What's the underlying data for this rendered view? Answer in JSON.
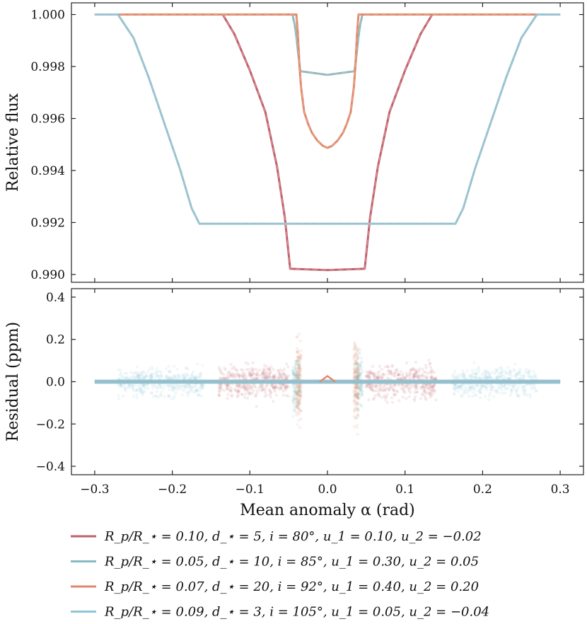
{
  "chart_data": [
    {
      "type": "line",
      "panel": "top",
      "ylabel": "Relative flux",
      "xlim": [
        -0.33,
        0.33
      ],
      "ylim": [
        0.9897,
        1.00045
      ],
      "yticks": [
        0.99,
        0.992,
        0.994,
        0.996,
        0.998,
        1.0
      ],
      "ytick_labels": [
        "0.990",
        "0.992",
        "0.994",
        "0.996",
        "0.998",
        "1.000"
      ],
      "series": [
        {
          "name": "series-1",
          "color": "#c0606e",
          "x": [
            -0.3,
            -0.15,
            -0.135,
            -0.12,
            -0.1,
            -0.08,
            -0.065,
            -0.055,
            -0.048,
            0.0,
            0.048,
            0.055,
            0.065,
            0.08,
            0.1,
            0.12,
            0.135,
            0.15,
            0.3
          ],
          "y": [
            1.0,
            1.0,
            1.0,
            0.99925,
            0.99785,
            0.99625,
            0.99415,
            0.9922,
            0.99022,
            0.99017,
            0.99022,
            0.9922,
            0.99415,
            0.99625,
            0.99785,
            0.99925,
            1.0,
            1.0,
            1.0
          ]
        },
        {
          "name": "series-2",
          "color": "#86bcc0",
          "x": [
            -0.3,
            -0.045,
            -0.042,
            -0.04,
            -0.038,
            -0.035,
            0.0,
            0.035,
            0.038,
            0.04,
            0.042,
            0.045,
            0.3
          ],
          "y": [
            1.0,
            1.0,
            0.99958,
            0.99915,
            0.9986,
            0.99782,
            0.99768,
            0.99782,
            0.9986,
            0.99915,
            0.99958,
            1.0,
            1.0
          ]
        },
        {
          "name": "series-3",
          "color": "#e0896a",
          "x": [
            -0.3,
            -0.04,
            -0.038,
            -0.036,
            -0.034,
            -0.03,
            -0.025,
            -0.02,
            -0.013,
            -0.006,
            0.0,
            0.006,
            0.013,
            0.02,
            0.025,
            0.03,
            0.034,
            0.036,
            0.038,
            0.04,
            0.3
          ],
          "y": [
            1.0,
            1.0,
            0.9992,
            0.998,
            0.9972,
            0.99625,
            0.9958,
            0.99545,
            0.99515,
            0.99495,
            0.99487,
            0.99495,
            0.99515,
            0.99545,
            0.9958,
            0.99625,
            0.9972,
            0.998,
            0.9992,
            1.0,
            1.0
          ]
        },
        {
          "name": "series-4",
          "color": "#8cc6d8",
          "x": [
            -0.3,
            -0.27,
            -0.25,
            -0.23,
            -0.21,
            -0.19,
            -0.175,
            -0.165,
            0.0,
            0.165,
            0.175,
            0.19,
            0.21,
            0.23,
            0.25,
            0.27,
            0.3
          ],
          "y": [
            1.0,
            1.0,
            0.9991,
            0.99755,
            0.9958,
            0.99405,
            0.99255,
            0.99195,
            0.99195,
            0.99195,
            0.99255,
            0.99405,
            0.9958,
            0.99755,
            0.9991,
            1.0,
            1.0
          ]
        }
      ]
    },
    {
      "type": "scatter",
      "panel": "bottom",
      "xlabel": "Mean anomaly α (rad)",
      "ylabel": "Residual (ppm)",
      "xlim": [
        -0.33,
        0.33
      ],
      "ylim": [
        -0.44,
        0.44
      ],
      "xticks": [
        -0.3,
        -0.2,
        -0.1,
        0.0,
        0.1,
        0.2,
        0.3
      ],
      "xtick_labels": [
        "−0.3",
        "−0.2",
        "−0.1",
        "0.0",
        "0.1",
        "0.2",
        "0.3"
      ],
      "yticks": [
        -0.4,
        -0.2,
        0.0,
        0.2,
        0.4
      ],
      "ytick_labels": [
        "−0.4",
        "−0.2",
        "0.0",
        "0.2",
        "0.4"
      ],
      "residual_clouds": [
        {
          "series": "series-1",
          "color": "#c0606e",
          "x_ranges": [
            [
              -0.14,
              -0.05
            ],
            [
              0.05,
              0.14
            ]
          ],
          "spread": 0.12
        },
        {
          "series": "series-2",
          "color": "#86bcc0",
          "x_ranges": [
            [
              -0.045,
              -0.035
            ],
            [
              0.035,
              0.045
            ]
          ],
          "spread": 0.2
        },
        {
          "series": "series-3",
          "color": "#e0896a",
          "x_ranges": [
            [
              -0.04,
              -0.034
            ],
            [
              0.034,
              0.04
            ]
          ],
          "spread": 0.3
        },
        {
          "series": "series-4",
          "color": "#8cc6d8",
          "x_ranges": [
            [
              -0.27,
              -0.16
            ],
            [
              0.16,
              0.27
            ]
          ],
          "spread": 0.1
        }
      ]
    }
  ],
  "legend": {
    "placement": "bottom",
    "entries": [
      {
        "color": "#c0606e",
        "label": "R_p/R_⋆ = 0.10, d_⋆ = 5, i = 80°, u_1 = 0.10, u_2 = −0.02"
      },
      {
        "color": "#86bcc0",
        "label": "R_p/R_⋆ = 0.05, d_⋆ = 10, i = 85°, u_1 = 0.30, u_2 = 0.05"
      },
      {
        "color": "#e0896a",
        "label": "R_p/R_⋆ = 0.07, d_⋆ = 20, i = 92°, u_1 = 0.40, u_2 = 0.20"
      },
      {
        "color": "#8cc6d8",
        "label": "R_p/R_⋆ = 0.09, d_⋆ = 3, i = 105°, u_1 = 0.05, u_2 = −0.04"
      }
    ]
  }
}
